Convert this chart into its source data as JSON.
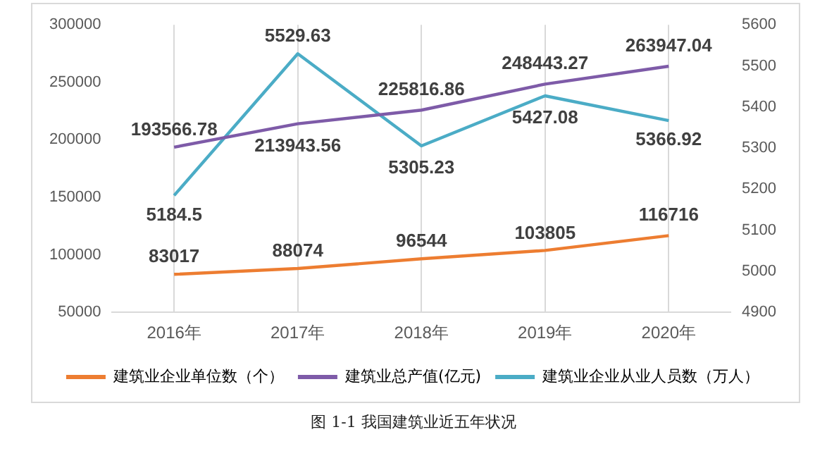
{
  "chart_data": {
    "type": "line",
    "categories": [
      "2016年",
      "2017年",
      "2018年",
      "2019年",
      "2020年"
    ],
    "series": [
      {
        "name": "建筑业企业单位数（个）",
        "color": "#ed7d31",
        "values": [
          83017,
          88074,
          96544,
          103805,
          116716
        ]
      },
      {
        "name": "建筑业总产值(亿元)",
        "color": "#7e5ba8",
        "values": [
          193566.78,
          213943.56,
          225816.86,
          248443.27,
          263947.04
        ]
      },
      {
        "name": "建筑业企业从业人员数（万人）",
        "color": "#4bacc6",
        "axis": "y2",
        "values": [
          5184.5,
          5529.63,
          5305.23,
          5427.08,
          5366.92
        ]
      }
    ],
    "ylim": [
      50000,
      300000
    ],
    "yticks": [
      50000,
      100000,
      150000,
      200000,
      250000,
      300000
    ],
    "y2lim": [
      4900,
      5600
    ],
    "y2ticks": [
      4900,
      5000,
      5100,
      5200,
      5300,
      5400,
      5500,
      5600
    ],
    "grid": "x",
    "legend": "bottom",
    "data_labels": true,
    "marker": "none",
    "line_style": "solid",
    "annotations": [
      "图 1-1  我国建筑业近五年状况"
    ]
  }
}
